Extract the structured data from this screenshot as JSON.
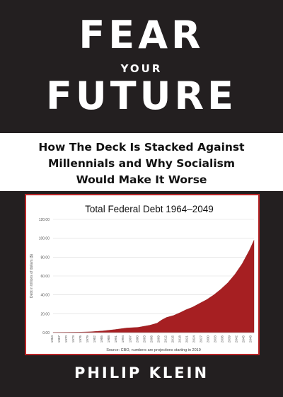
{
  "cover": {
    "title_line1": "FEAR",
    "title_line2": "YOUR",
    "title_line3": "FUTURE",
    "subtitle_lines": [
      "How The Deck Is Stacked Against",
      "Millennials and Why Socialism",
      "Would Make It Worse"
    ],
    "author": "PHILIP KLEIN"
  },
  "colors": {
    "background": "#231f20",
    "accent": "#b82527",
    "text_light": "#ffffff",
    "text_dark": "#111111"
  },
  "chart_data": {
    "type": "area",
    "title": "Total Federal Debt 1964–2049",
    "ylabel": "Debt in trillions of dollars ($)",
    "xlabel": "",
    "source": "Source: CBO, numbers are projections starting in 2019",
    "ylim": [
      0,
      120
    ],
    "grid": true,
    "y_ticks": [
      "0.00",
      "20.00",
      "40.00",
      "60.00",
      "80.00",
      "100.00",
      "120.00"
    ],
    "x_ticks": [
      "1964",
      "1967",
      "1970",
      "1973",
      "1976",
      "1979",
      "1982",
      "1985",
      "1988",
      "1991",
      "1994",
      "1997",
      "2000",
      "2003",
      "2006",
      "2009",
      "2012",
      "2015",
      "2018",
      "2021",
      "2024",
      "2027",
      "2030",
      "2033",
      "2036",
      "2039",
      "2042",
      "2045",
      "2048"
    ],
    "series": [
      {
        "x": [
          1964,
          1970,
          1975,
          1980,
          1985,
          1990,
          1995,
          2000,
          2005,
          2008,
          2010,
          2012,
          2015,
          2018,
          2020,
          2023,
          2026,
          2029,
          2032,
          2035,
          2038,
          2041,
          2044,
          2047,
          2049
        ],
        "values": [
          0.3,
          0.4,
          0.5,
          0.9,
          1.8,
          3.2,
          4.9,
          5.6,
          7.9,
          10.0,
          13.5,
          16.1,
          18.2,
          21.5,
          24,
          27,
          31,
          35,
          40,
          46,
          53,
          62,
          73,
          87,
          98
        ]
      }
    ]
  }
}
